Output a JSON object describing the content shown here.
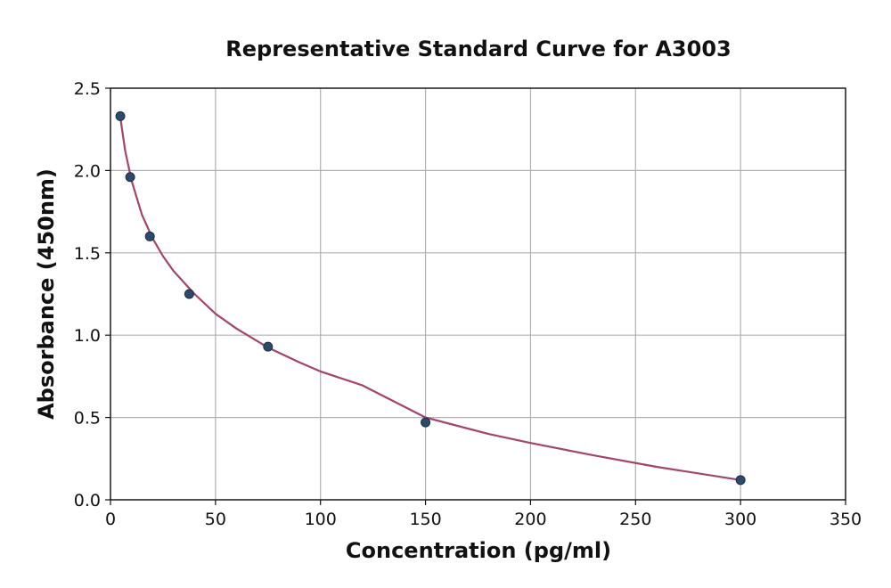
{
  "chart_data": {
    "type": "scatter",
    "title": "Representative Standard Curve for A3003",
    "xlabel": "Concentration (pg/ml)",
    "ylabel": "Absorbance (450nm)",
    "xlim": [
      0,
      350
    ],
    "ylim": [
      0.0,
      2.5
    ],
    "xticks": [
      0,
      50,
      100,
      150,
      200,
      250,
      300,
      350
    ],
    "yticks": [
      0.0,
      0.5,
      1.0,
      1.5,
      2.0,
      2.5
    ],
    "xtick_labels": [
      "0",
      "50",
      "100",
      "150",
      "200",
      "250",
      "300",
      "350"
    ],
    "ytick_labels": [
      "0.0",
      "0.5",
      "1.0",
      "1.5",
      "2.0",
      "2.5"
    ],
    "grid": true,
    "series": [
      {
        "kind": "points",
        "x": [
          4.69,
          9.38,
          18.75,
          37.5,
          75,
          150,
          300
        ],
        "y": [
          2.33,
          1.96,
          1.6,
          1.25,
          0.93,
          0.47,
          0.12
        ],
        "color": "#2d4a6b"
      },
      {
        "kind": "fit",
        "x": [
          4.69,
          7,
          10,
          15,
          20,
          25,
          30,
          40,
          50,
          60,
          75,
          90,
          100,
          120,
          150,
          180,
          200,
          230,
          260,
          300
        ],
        "y": [
          2.32,
          2.12,
          1.94,
          1.73,
          1.59,
          1.48,
          1.39,
          1.25,
          1.13,
          1.04,
          0.925,
          0.835,
          0.78,
          0.695,
          0.5,
          0.4,
          0.345,
          0.27,
          0.2,
          0.12
        ],
        "color": "#a3446a"
      }
    ]
  }
}
